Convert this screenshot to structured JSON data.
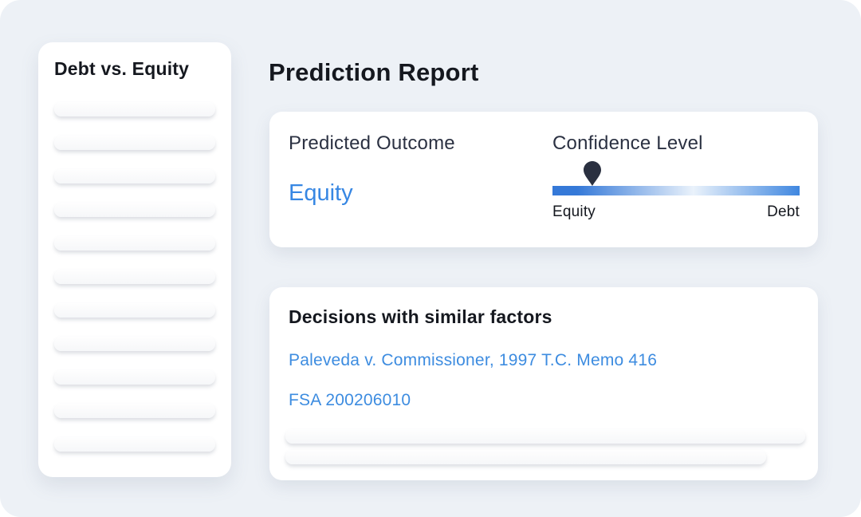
{
  "theme": {
    "background": "#edf1f6",
    "card": "#ffffff",
    "heading_text": "#15181f",
    "dark_text": "#2b3142",
    "accent_blue": "#3787e3",
    "link_blue": "#3d8ce0",
    "pin_color": "#2a3040",
    "slider_gradient_left": "#3579d8",
    "slider_gradient_mid": "#eaf2fb",
    "slider_gradient_right": "#3f87e0"
  },
  "sidebar": {
    "title": "Debt vs. Equity",
    "skeleton_count": 11
  },
  "header": {
    "title": "Prediction Report"
  },
  "prediction_card": {
    "outcome_label": "Predicted Outcome",
    "outcome_value": "Equity",
    "confidence_label": "Confidence Level",
    "slider": {
      "left_label": "Equity",
      "right_label": "Debt",
      "position_percent": 16
    }
  },
  "decisions_card": {
    "title": "Decisions with similar factors",
    "links": [
      "Paleveda v. Commissioner, 1997 T.C. Memo 416",
      "FSA 200206010"
    ]
  }
}
